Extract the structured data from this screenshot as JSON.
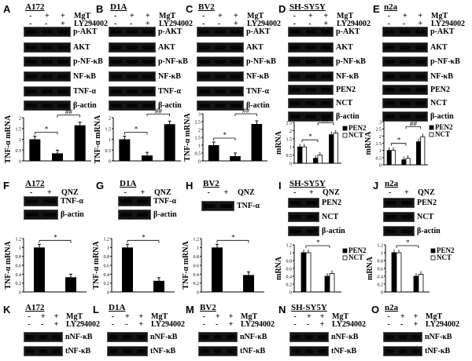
{
  "panels": [
    {
      "id": "A",
      "cell": "A172",
      "x": 4,
      "y": 3,
      "blotX": 30,
      "blotW": 60,
      "treats": [
        "MgT",
        "LY294002"
      ],
      "signs": [
        [
          "-",
          "+",
          "+"
        ],
        [
          "-",
          "-",
          "+"
        ]
      ],
      "rows": [
        "p-AKT",
        "AKT",
        "p-NF-κB",
        "NF-κB",
        "TNF-α",
        "β-actin"
      ],
      "rowY": [
        34,
        54,
        72,
        91,
        110,
        128
      ]
    },
    {
      "id": "B",
      "cell": "D1A",
      "x": 122,
      "y": 3,
      "blotX": 138,
      "blotW": 60,
      "treats": [
        "MgT",
        "LY294002"
      ],
      "signs": [
        [
          "-",
          "+",
          "+"
        ],
        [
          "-",
          "-",
          "+"
        ]
      ],
      "rows": [
        "p-AKT",
        "AKT",
        "p-NF-κB",
        "NF-κB",
        "TNF-α",
        "β-actin"
      ],
      "rowY": [
        34,
        54,
        72,
        91,
        110,
        128
      ]
    },
    {
      "id": "C",
      "cell": "BV2",
      "x": 236,
      "y": 3,
      "blotX": 250,
      "blotW": 60,
      "treats": [
        "MgT",
        "LY294002"
      ],
      "signs": [
        [
          "-",
          "+",
          "+"
        ],
        [
          "-",
          "-",
          "+"
        ]
      ],
      "rows": [
        "p-AKT",
        "AKT",
        "p-NF-κB",
        "NF-κB",
        "TNF-α",
        "β-actin"
      ],
      "rowY": [
        34,
        54,
        72,
        91,
        110,
        128
      ]
    },
    {
      "id": "D",
      "cell": "SH-SY5Y",
      "x": 354,
      "y": 3,
      "blotX": 366,
      "blotW": 58,
      "treats": [
        "MgT",
        "LY294002"
      ],
      "signs": [
        [
          "-",
          "+",
          "+"
        ],
        [
          "-",
          "-",
          "+"
        ]
      ],
      "rows": [
        "p-AKT",
        "AKT",
        "p-NF-κB",
        "NF-κB",
        "PEN2",
        "NCT",
        "β-actin"
      ],
      "rowY": [
        34,
        54,
        72,
        91,
        108,
        125,
        142
      ]
    },
    {
      "id": "E",
      "cell": "n2a",
      "x": 474,
      "y": 3,
      "blotX": 486,
      "blotW": 58,
      "treats": [
        "MgT",
        "LY294002"
      ],
      "signs": [
        [
          "-",
          "+",
          "+"
        ],
        [
          "-",
          "-",
          "+"
        ]
      ],
      "rows": [
        "p-AKT",
        "AKT",
        "p-NF-κB",
        "NF-κB",
        "PEN2",
        "NCT",
        "β-actin"
      ],
      "rowY": [
        34,
        54,
        72,
        91,
        108,
        125,
        142
      ]
    },
    {
      "id": "F",
      "cell": "A172",
      "x": 4,
      "y": 228,
      "blotX": 30,
      "blotW": 44,
      "treats": [
        "QNZ"
      ],
      "signs": [
        [
          "-",
          "+"
        ]
      ],
      "rows": [
        "TNF-α",
        "β-actin"
      ],
      "rowY": [
        250,
        267
      ]
    },
    {
      "id": "G",
      "cell": "D1A",
      "x": 122,
      "y": 228,
      "blotX": 150,
      "blotW": 42,
      "treats": [
        "QNZ"
      ],
      "signs": [
        [
          "-",
          "+"
        ]
      ],
      "rows": [
        "TNF-α",
        "β-actin"
      ],
      "rowY": [
        250,
        267
      ]
    },
    {
      "id": "H",
      "cell": "BV2",
      "x": 236,
      "y": 228,
      "blotX": 256,
      "blotW": 42,
      "treats": [
        "QNZ"
      ],
      "signs": [
        [
          "-",
          "+"
        ]
      ],
      "rows": [
        "TNF-α"
      ],
      "rowY": [
        256
      ]
    },
    {
      "id": "I",
      "cell": "SH-SY5Y",
      "x": 354,
      "y": 228,
      "blotX": 366,
      "blotW": 40,
      "treats": [
        "QNZ"
      ],
      "signs": [
        [
          "-",
          "+"
        ]
      ],
      "rows": [
        "PEN2",
        "NCT",
        "β-actin"
      ],
      "rowY": [
        252,
        270,
        288
      ]
    },
    {
      "id": "J",
      "cell": "n2a",
      "x": 474,
      "y": 228,
      "blotX": 487,
      "blotW": 40,
      "treats": [
        "QNZ"
      ],
      "signs": [
        [
          "-",
          "+"
        ]
      ],
      "rows": [
        "PEN2",
        "NCT",
        "β-actin"
      ],
      "rowY": [
        252,
        270,
        288
      ]
    },
    {
      "id": "K",
      "cell": "A172",
      "x": 4,
      "y": 386,
      "blotX": 30,
      "blotW": 50,
      "treats": [
        "MgT",
        "LY294002"
      ],
      "signs": [
        [
          "-",
          "+",
          "+"
        ],
        [
          "-",
          "-",
          "+"
        ]
      ],
      "rows": [
        "nNF-κB",
        "tNF-κB"
      ],
      "rowY": [
        423,
        441
      ]
    },
    {
      "id": "L",
      "cell": "D1A",
      "x": 118,
      "y": 386,
      "blotX": 136,
      "blotW": 52,
      "treats": [
        "MgT",
        "LY294002"
      ],
      "signs": [
        [
          "-",
          "+",
          "+"
        ],
        [
          "-",
          "-",
          "+"
        ]
      ],
      "rows": [
        "nNF-κB",
        "tNF-κB"
      ],
      "rowY": [
        423,
        441
      ]
    },
    {
      "id": "M",
      "cell": "BV2",
      "x": 236,
      "y": 386,
      "blotX": 252,
      "blotW": 50,
      "treats": [
        "MgT",
        "LY294002"
      ],
      "signs": [
        [
          "-",
          "+",
          "+"
        ],
        [
          "-",
          "-",
          "+"
        ]
      ],
      "rows": [
        "nNF-κB",
        "tNF-κB"
      ],
      "rowY": [
        423,
        441
      ]
    },
    {
      "id": "N",
      "cell": "SH-SY5Y",
      "x": 354,
      "y": 386,
      "blotX": 368,
      "blotW": 50,
      "treats": [
        "MgT",
        "LY294002"
      ],
      "signs": [
        [
          "-",
          "+",
          "+"
        ],
        [
          "-",
          "-",
          "+"
        ]
      ],
      "rows": [
        "nNF-κB",
        "tNF-κB"
      ],
      "rowY": [
        423,
        441
      ]
    },
    {
      "id": "O",
      "cell": "n2a",
      "x": 472,
      "y": 386,
      "blotX": 487,
      "blotW": 50,
      "treats": [
        "MgT",
        "LY294002"
      ],
      "signs": [
        [
          "-",
          "+",
          "+"
        ],
        [
          "-",
          "-",
          "+"
        ]
      ],
      "rows": [
        "nNF-κB",
        "tNF-κB"
      ],
      "rowY": [
        423,
        441
      ]
    }
  ],
  "chart_data": [
    {
      "panel": "A",
      "type": "bar",
      "ylabel": "TNF-α mRNA",
      "ylim": [
        0,
        2
      ],
      "yticks": [
        "0",
        "0.5",
        "1",
        "1.5",
        "2"
      ],
      "values": [
        1.0,
        0.35,
        1.65
      ],
      "colors": [
        "#000",
        "#000",
        "#000"
      ],
      "sig": [
        {
          "a": 0,
          "b": 1,
          "t": "*"
        },
        {
          "a": 1,
          "b": 2,
          "t": "##"
        }
      ]
    },
    {
      "panel": "B",
      "type": "bar",
      "ylabel": "TNF-α mRNA",
      "ylim": [
        0,
        2
      ],
      "yticks": [
        "0",
        "0.5",
        "1",
        "1.5",
        "2"
      ],
      "values": [
        1.0,
        0.25,
        1.7
      ],
      "colors": [
        "#000",
        "#000",
        "#000"
      ],
      "sig": [
        {
          "a": 0,
          "b": 1,
          "t": "*"
        },
        {
          "a": 1,
          "b": 2,
          "t": "##"
        }
      ]
    },
    {
      "panel": "C",
      "type": "bar",
      "ylabel": "TNF-α mRNA",
      "ylim": [
        0,
        3
      ],
      "yticks": [
        "0",
        "0.5",
        "1",
        "1.5",
        "2",
        "2.5",
        "3"
      ],
      "values": [
        1.0,
        0.3,
        2.35
      ],
      "colors": [
        "#000",
        "#000",
        "#000"
      ],
      "sig": [
        {
          "a": 0,
          "b": 1,
          "t": "*"
        },
        {
          "a": 1,
          "b": 2,
          "t": "##"
        }
      ]
    },
    {
      "panel": "D",
      "type": "bar",
      "ylabel": "mRNA",
      "ylim": [
        0,
        2.5
      ],
      "yticks": [
        "0",
        "0.5",
        "1",
        "1.5",
        "2",
        "2.5"
      ],
      "legend": [
        "PEN2",
        "NCT"
      ],
      "series": [
        {
          "name": "PEN2",
          "values": [
            1.0,
            0.3,
            1.75
          ]
        },
        {
          "name": "NCT",
          "values": [
            1.0,
            0.5,
            1.85
          ]
        }
      ],
      "sig": [
        {
          "a": 0,
          "b": 1,
          "t": "*"
        },
        {
          "a": 1,
          "b": 2,
          "t": "##"
        }
      ]
    },
    {
      "panel": "E",
      "type": "bar",
      "ylabel": "mRNA",
      "ylim": [
        0,
        3
      ],
      "yticks": [
        "0",
        "0.5",
        "1",
        "1.5",
        "2",
        "2.5",
        "3"
      ],
      "legend": [
        "PEN2",
        "NCT"
      ],
      "series": [
        {
          "name": "PEN2",
          "values": [
            1.0,
            0.35,
            1.6
          ]
        },
        {
          "name": "NCT",
          "values": [
            1.0,
            0.45,
            1.95
          ]
        }
      ],
      "sig": [
        {
          "a": 0,
          "b": 1,
          "t": "*"
        },
        {
          "a": 1,
          "b": 2,
          "t": "##"
        }
      ]
    },
    {
      "panel": "F",
      "type": "bar",
      "ylabel": "TNF-α mRNA",
      "ylim": [
        0,
        1.2
      ],
      "yticks": [
        "0",
        "0.2",
        "0.4",
        "0.6",
        "0.8",
        "1",
        "1.2"
      ],
      "values": [
        1.0,
        0.33
      ],
      "colors": [
        "#000",
        "#000"
      ],
      "sig": [
        {
          "a": 0,
          "b": 1,
          "t": "*"
        }
      ]
    },
    {
      "panel": "G",
      "type": "bar",
      "ylabel": "TNF-α mRNA",
      "ylim": [
        0,
        1.2
      ],
      "yticks": [
        "0",
        "0.2",
        "0.4",
        "0.6",
        "0.8",
        "1",
        "1.2"
      ],
      "values": [
        1.0,
        0.25
      ],
      "colors": [
        "#000",
        "#000"
      ],
      "sig": [
        {
          "a": 0,
          "b": 1,
          "t": "*"
        }
      ]
    },
    {
      "panel": "H",
      "type": "bar",
      "ylabel": "TNF-α mRNA",
      "ylim": [
        0,
        1.2
      ],
      "yticks": [
        "0",
        "0.2",
        "0.4",
        "0.6",
        "0.8",
        "1",
        "1.2"
      ],
      "values": [
        1.0,
        0.38
      ],
      "colors": [
        "#000",
        "#000"
      ],
      "sig": [
        {
          "a": 0,
          "b": 1,
          "t": "*"
        }
      ]
    },
    {
      "panel": "I",
      "type": "bar",
      "ylabel": "mRNA",
      "ylim": [
        0,
        1.2
      ],
      "yticks": [
        "0",
        "0.2",
        "0.4",
        "0.6",
        "0.8",
        "1",
        "1.2"
      ],
      "legend": [
        "PEN2",
        "NCT"
      ],
      "series": [
        {
          "name": "PEN2",
          "values": [
            1.0,
            0.4
          ]
        },
        {
          "name": "NCT",
          "values": [
            1.0,
            0.47
          ]
        }
      ],
      "sig": [
        {
          "a": 0,
          "b": 1,
          "t": "*"
        }
      ]
    },
    {
      "panel": "J",
      "type": "bar",
      "ylabel": "mRNA",
      "ylim": [
        0,
        1.2
      ],
      "yticks": [
        "0",
        "0.2",
        "0.4",
        "0.6",
        "0.8",
        "1",
        "1.2"
      ],
      "legend": [
        "PEN2",
        "NCT"
      ],
      "series": [
        {
          "name": "PEN2",
          "values": [
            1.0,
            0.4
          ]
        },
        {
          "name": "NCT",
          "values": [
            1.0,
            0.45
          ]
        }
      ],
      "sig": [
        {
          "a": 0,
          "b": 1,
          "t": "*"
        }
      ]
    }
  ]
}
